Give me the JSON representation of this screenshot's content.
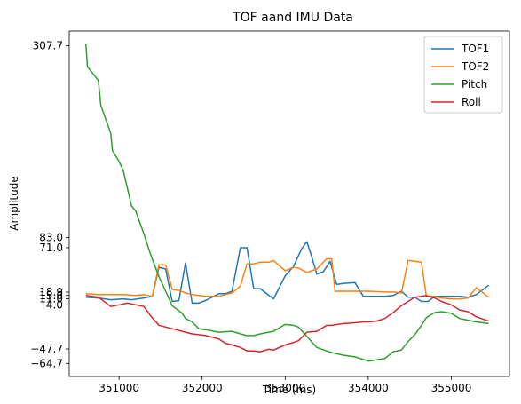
{
  "chart_data": {
    "type": "line",
    "title": "TOF aand IMU Data",
    "xlabel": "Time (ms)",
    "ylabel": "Amplitude",
    "xlim": [
      350400,
      355700
    ],
    "ylim": [
      -80,
      325
    ],
    "xticks": [
      351000,
      352000,
      353000,
      354000,
      355000
    ],
    "yticks": [
      307.7,
      83.0,
      71.0,
      18.9,
      15.0,
      11.0,
      4.0,
      -47.7,
      -64.7
    ],
    "ytick_labels": [
      "307.7",
      "83.0",
      "71.0",
      "18.9",
      "15.0",
      "11.0",
      "4.0",
      "−47.7",
      "−64.7"
    ],
    "legend_position": "top-right",
    "grid": false,
    "series": [
      {
        "name": "TOF1",
        "color": "#1f77b4",
        "points": [
          [
            350600,
            13
          ],
          [
            350750,
            12
          ],
          [
            350900,
            10
          ],
          [
            351050,
            11
          ],
          [
            351150,
            10
          ],
          [
            351300,
            12
          ],
          [
            351400,
            14
          ],
          [
            351480,
            48
          ],
          [
            351560,
            46
          ],
          [
            351640,
            8
          ],
          [
            351720,
            9
          ],
          [
            351800,
            53
          ],
          [
            351880,
            6
          ],
          [
            351960,
            6
          ],
          [
            352040,
            9
          ],
          [
            352200,
            17
          ],
          [
            352280,
            17
          ],
          [
            352360,
            20
          ],
          [
            352460,
            71
          ],
          [
            352540,
            71
          ],
          [
            352620,
            23
          ],
          [
            352700,
            23
          ],
          [
            352860,
            11
          ],
          [
            353000,
            38
          ],
          [
            353100,
            49
          ],
          [
            353200,
            70
          ],
          [
            353260,
            78
          ],
          [
            353320,
            60
          ],
          [
            353380,
            40
          ],
          [
            353460,
            43
          ],
          [
            353540,
            55
          ],
          [
            353620,
            28
          ],
          [
            353700,
            29
          ],
          [
            353840,
            30
          ],
          [
            353940,
            14
          ],
          [
            354000,
            14
          ],
          [
            354200,
            14
          ],
          [
            354300,
            15
          ],
          [
            354400,
            20
          ],
          [
            354480,
            13
          ],
          [
            354560,
            13
          ],
          [
            354640,
            8
          ],
          [
            354720,
            8
          ],
          [
            354800,
            14
          ],
          [
            354880,
            14
          ],
          [
            355000,
            14
          ],
          [
            355100,
            14
          ],
          [
            355200,
            13
          ],
          [
            355300,
            16
          ],
          [
            355450,
            27
          ]
        ]
      },
      {
        "name": "TOF2",
        "color": "#ff7f0e",
        "points": [
          [
            350600,
            17
          ],
          [
            350750,
            16
          ],
          [
            350900,
            16
          ],
          [
            351050,
            16
          ],
          [
            351200,
            15
          ],
          [
            351300,
            16
          ],
          [
            351400,
            14
          ],
          [
            351480,
            51
          ],
          [
            351560,
            51
          ],
          [
            351640,
            22
          ],
          [
            351720,
            21
          ],
          [
            351800,
            18
          ],
          [
            351880,
            16
          ],
          [
            351960,
            15
          ],
          [
            352040,
            14
          ],
          [
            352200,
            14
          ],
          [
            352280,
            16
          ],
          [
            352360,
            18
          ],
          [
            352460,
            26
          ],
          [
            352540,
            52
          ],
          [
            352620,
            52
          ],
          [
            352700,
            54
          ],
          [
            352800,
            54
          ],
          [
            352860,
            56
          ],
          [
            353000,
            44
          ],
          [
            353100,
            48
          ],
          [
            353160,
            47
          ],
          [
            353260,
            42
          ],
          [
            353380,
            46
          ],
          [
            353500,
            58
          ],
          [
            353560,
            58
          ],
          [
            353600,
            20
          ],
          [
            353700,
            20
          ],
          [
            353840,
            20
          ],
          [
            353940,
            20
          ],
          [
            354000,
            20
          ],
          [
            354200,
            19
          ],
          [
            354300,
            19
          ],
          [
            354400,
            18
          ],
          [
            354480,
            56
          ],
          [
            354560,
            55
          ],
          [
            354640,
            54
          ],
          [
            354700,
            14
          ],
          [
            354800,
            14
          ],
          [
            354880,
            12
          ],
          [
            355000,
            11
          ],
          [
            355100,
            11
          ],
          [
            355200,
            12
          ],
          [
            355300,
            24
          ],
          [
            355450,
            13
          ]
        ]
      },
      {
        "name": "Pitch",
        "color": "#2ca02c",
        "points": [
          [
            350600,
            310
          ],
          [
            350620,
            283
          ],
          [
            350750,
            267
          ],
          [
            350780,
            238
          ],
          [
            350900,
            205
          ],
          [
            350920,
            185
          ],
          [
            351000,
            172
          ],
          [
            351050,
            162
          ],
          [
            351150,
            120
          ],
          [
            351200,
            114
          ],
          [
            351300,
            87
          ],
          [
            351380,
            63
          ],
          [
            351480,
            37
          ],
          [
            351560,
            20
          ],
          [
            351640,
            3
          ],
          [
            351760,
            -6
          ],
          [
            351800,
            -12
          ],
          [
            351880,
            -16
          ],
          [
            351960,
            -24
          ],
          [
            352040,
            -25
          ],
          [
            352200,
            -28
          ],
          [
            352360,
            -27
          ],
          [
            352460,
            -30
          ],
          [
            352540,
            -32
          ],
          [
            352620,
            -32
          ],
          [
            352700,
            -30
          ],
          [
            352800,
            -28
          ],
          [
            352860,
            -27
          ],
          [
            353000,
            -19
          ],
          [
            353100,
            -20
          ],
          [
            353160,
            -22
          ],
          [
            353260,
            -33
          ],
          [
            353380,
            -46
          ],
          [
            353500,
            -50
          ],
          [
            353560,
            -52
          ],
          [
            353700,
            -55
          ],
          [
            353840,
            -57
          ],
          [
            353940,
            -60
          ],
          [
            354000,
            -62
          ],
          [
            354200,
            -59
          ],
          [
            354300,
            -51
          ],
          [
            354400,
            -49
          ],
          [
            354480,
            -39
          ],
          [
            354560,
            -31
          ],
          [
            354640,
            -20
          ],
          [
            354700,
            -11
          ],
          [
            354800,
            -5
          ],
          [
            354880,
            -4
          ],
          [
            355000,
            -6
          ],
          [
            355100,
            -12
          ],
          [
            355200,
            -14
          ],
          [
            355300,
            -16
          ],
          [
            355450,
            -18
          ]
        ]
      },
      {
        "name": "Roll",
        "color": "#d62728",
        "points": [
          [
            350600,
            15
          ],
          [
            350750,
            13
          ],
          [
            350900,
            2
          ],
          [
            351000,
            4
          ],
          [
            351100,
            6
          ],
          [
            351200,
            4
          ],
          [
            351300,
            2
          ],
          [
            351380,
            -9
          ],
          [
            351480,
            -20
          ],
          [
            351560,
            -22
          ],
          [
            351640,
            -24
          ],
          [
            351760,
            -27
          ],
          [
            351800,
            -28
          ],
          [
            351880,
            -30
          ],
          [
            351960,
            -31
          ],
          [
            352040,
            -32
          ],
          [
            352200,
            -36
          ],
          [
            352280,
            -41
          ],
          [
            352360,
            -43
          ],
          [
            352460,
            -46
          ],
          [
            352540,
            -50
          ],
          [
            352620,
            -50
          ],
          [
            352700,
            -51
          ],
          [
            352800,
            -48
          ],
          [
            352860,
            -49
          ],
          [
            353000,
            -43
          ],
          [
            353100,
            -40
          ],
          [
            353160,
            -38
          ],
          [
            353260,
            -28
          ],
          [
            353380,
            -27
          ],
          [
            353500,
            -20
          ],
          [
            353560,
            -20
          ],
          [
            353700,
            -18
          ],
          [
            353840,
            -17
          ],
          [
            353940,
            -16
          ],
          [
            354000,
            -16
          ],
          [
            354100,
            -15
          ],
          [
            354200,
            -12
          ],
          [
            354300,
            -5
          ],
          [
            354400,
            3
          ],
          [
            354480,
            8
          ],
          [
            354560,
            13
          ],
          [
            354640,
            14
          ],
          [
            354700,
            15
          ],
          [
            354800,
            12
          ],
          [
            354880,
            8
          ],
          [
            355000,
            4
          ],
          [
            355100,
            -2
          ],
          [
            355200,
            -4
          ],
          [
            355300,
            -10
          ],
          [
            355450,
            -15
          ]
        ]
      }
    ]
  }
}
